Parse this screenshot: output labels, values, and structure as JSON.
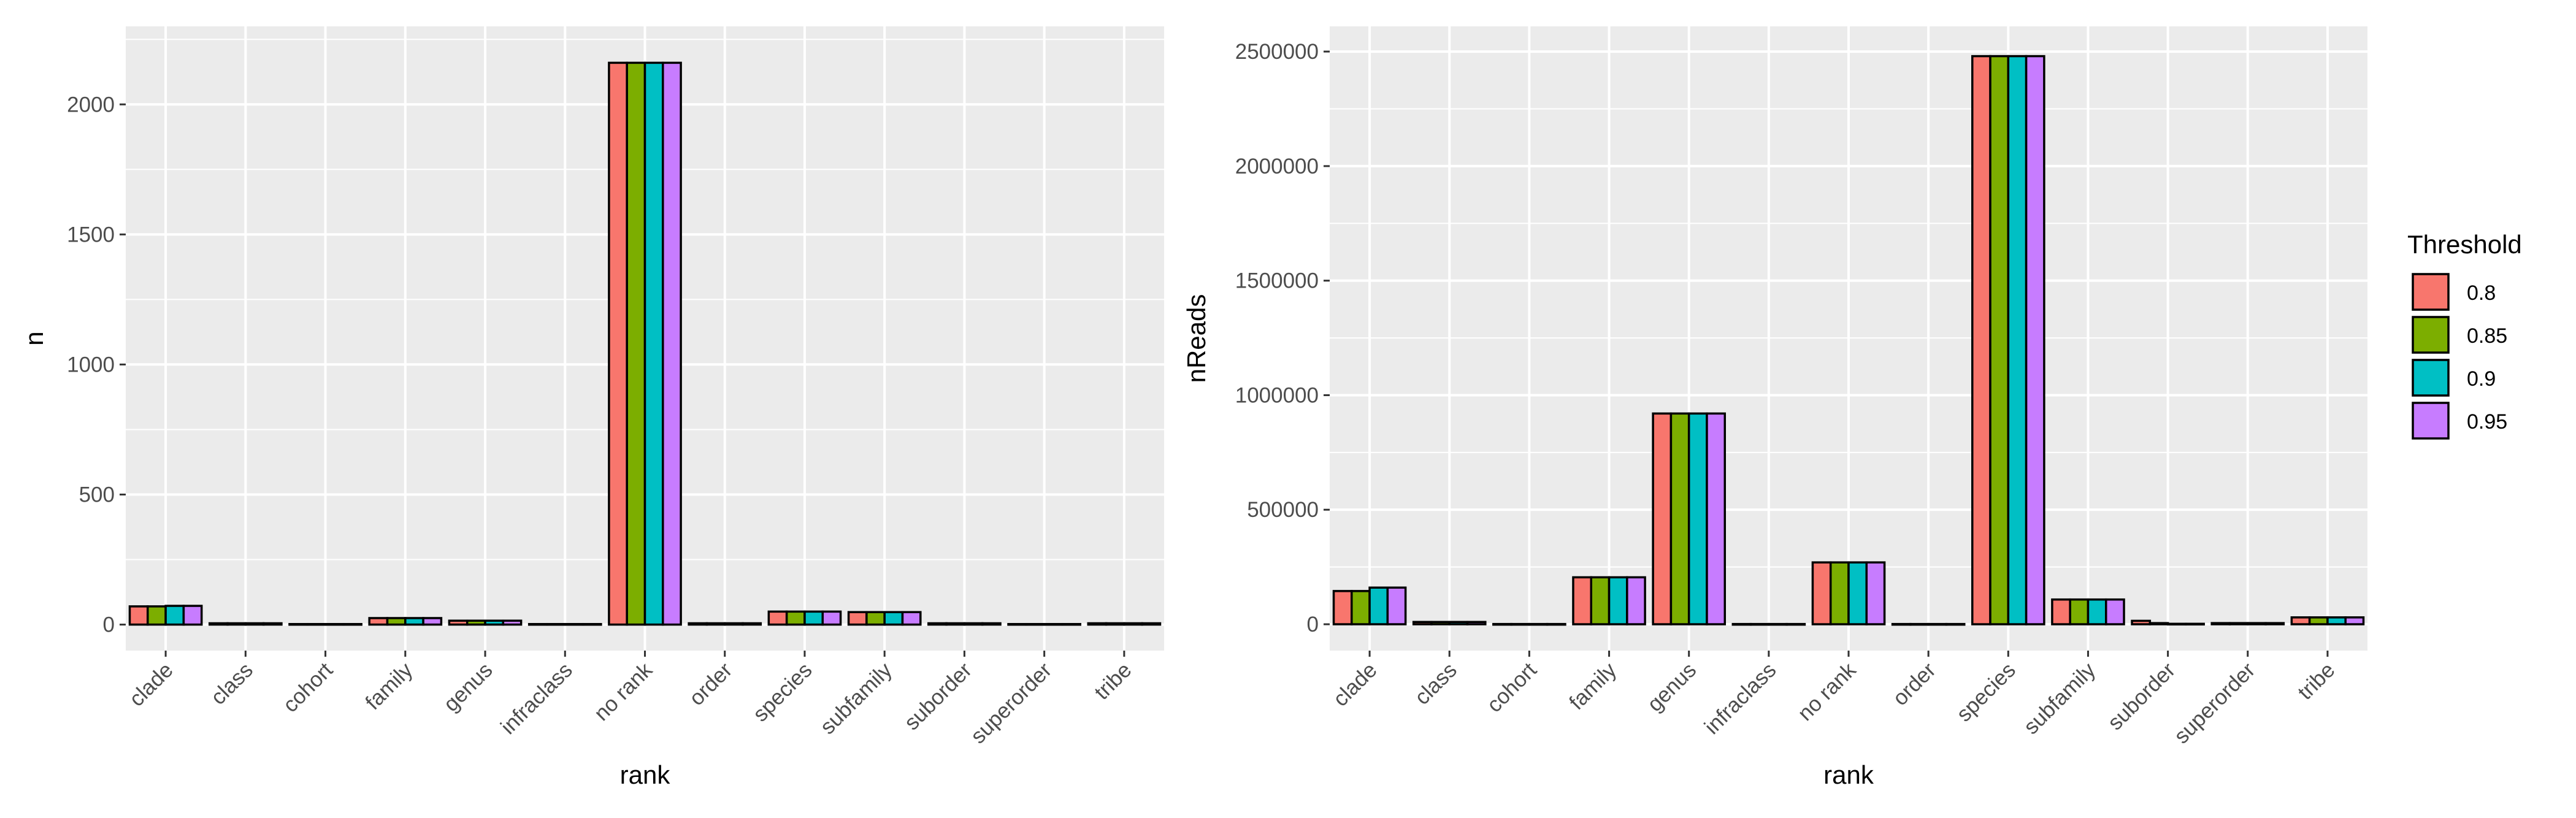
{
  "chart_data": [
    {
      "type": "bar",
      "xlabel": "rank",
      "ylabel": "n",
      "ylim": [
        -100,
        2300
      ],
      "yticks": [
        0,
        500,
        1000,
        1500,
        2000
      ],
      "ytick_labels": [
        "0",
        "500",
        "1000",
        "1500",
        "2000"
      ],
      "categories": [
        "clade",
        "class",
        "cohort",
        "family",
        "genus",
        "infraclass",
        "no rank",
        "order",
        "species",
        "subfamily",
        "suborder",
        "superorder",
        "tribe"
      ],
      "series": [
        {
          "name": "0.8",
          "values": [
            70,
            5,
            2,
            25,
            15,
            2,
            2160,
            5,
            50,
            48,
            5,
            2,
            5
          ]
        },
        {
          "name": "0.85",
          "values": [
            70,
            5,
            2,
            25,
            15,
            2,
            2160,
            5,
            50,
            48,
            5,
            2,
            5
          ]
        },
        {
          "name": "0.9",
          "values": [
            72,
            5,
            2,
            25,
            15,
            2,
            2160,
            5,
            50,
            48,
            5,
            2,
            5
          ]
        },
        {
          "name": "0.95",
          "values": [
            72,
            5,
            2,
            25,
            15,
            2,
            2160,
            5,
            50,
            48,
            5,
            2,
            5
          ]
        }
      ],
      "grid": true
    },
    {
      "type": "bar",
      "xlabel": "rank",
      "ylabel": "nReads",
      "ylim": [
        -115000,
        2610000
      ],
      "yticks": [
        0,
        500000,
        1000000,
        1500000,
        2000000,
        2500000
      ],
      "ytick_labels": [
        "0",
        "500000",
        "1000000",
        "1500000",
        "2000000",
        "2500000"
      ],
      "categories": [
        "clade",
        "class",
        "cohort",
        "family",
        "genus",
        "infraclass",
        "no rank",
        "order",
        "species",
        "subfamily",
        "suborder",
        "superorder",
        "tribe"
      ],
      "series": [
        {
          "name": "0.8",
          "values": [
            145000,
            10000,
            1000,
            205000,
            920000,
            1000,
            270000,
            1000,
            2480000,
            108000,
            15000,
            5000,
            30000
          ]
        },
        {
          "name": "0.85",
          "values": [
            145000,
            10000,
            1000,
            205000,
            920000,
            1000,
            270000,
            1000,
            2480000,
            108000,
            5000,
            5000,
            30000
          ]
        },
        {
          "name": "0.9",
          "values": [
            160000,
            10000,
            1000,
            205000,
            920000,
            1000,
            270000,
            1000,
            2480000,
            108000,
            2000,
            5000,
            30000
          ]
        },
        {
          "name": "0.95",
          "values": [
            160000,
            10000,
            1000,
            205000,
            920000,
            1000,
            270000,
            1000,
            2480000,
            108000,
            2000,
            5000,
            30000
          ]
        }
      ],
      "grid": true
    }
  ],
  "legend": {
    "title": "Threshold",
    "placement": "right",
    "items": [
      {
        "label": "0.8",
        "color": "#F8766D"
      },
      {
        "label": "0.85",
        "color": "#7CAE00"
      },
      {
        "label": "0.9",
        "color": "#00BFC4"
      },
      {
        "label": "0.95",
        "color": "#C77CFF"
      }
    ]
  },
  "colors": {
    "panel_background": "#EBEBEB",
    "grid": "#FFFFFF",
    "bar_outline": "#000000"
  }
}
